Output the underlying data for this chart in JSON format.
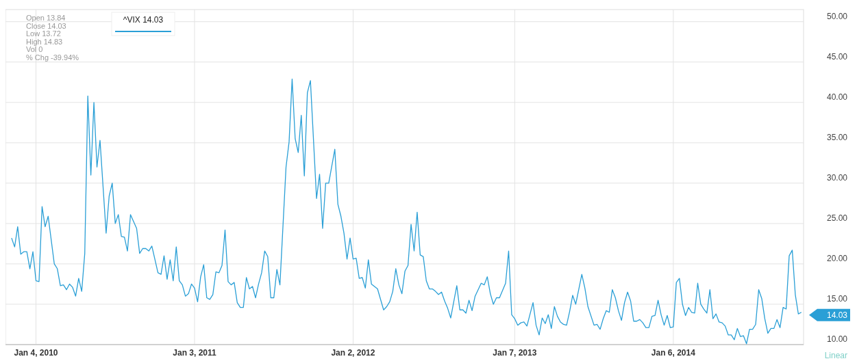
{
  "chart_data": {
    "type": "line",
    "xlim": [
      "2009-10-26",
      "2014-11-01"
    ],
    "ylim": [
      10,
      51.5
    ],
    "xticks": [
      {
        "value": "2010-01-04",
        "label": "Jan 4, 2010"
      },
      {
        "value": "2011-01-03",
        "label": "Jan 3, 2011"
      },
      {
        "value": "2012-01-02",
        "label": "Jan 2, 2012"
      },
      {
        "value": "2013-01-07",
        "label": "Jan 7, 2013"
      },
      {
        "value": "2014-01-06",
        "label": "Jan 6, 2014"
      }
    ],
    "yticks": [
      {
        "value": 10,
        "label": "10.00"
      },
      {
        "value": 15,
        "label": "15.00"
      },
      {
        "value": 20,
        "label": "20.00"
      },
      {
        "value": 25,
        "label": "25.00"
      },
      {
        "value": 30,
        "label": "30.00"
      },
      {
        "value": 35,
        "label": "35.00"
      },
      {
        "value": 40,
        "label": "40.00"
      },
      {
        "value": 45,
        "label": "45.00"
      },
      {
        "value": 50,
        "label": "50.00"
      }
    ],
    "grid": true,
    "legend": "top left",
    "marker": "none",
    "line_style": "solid",
    "series": [
      {
        "name": "^VIX 14.03",
        "color": "#2a9fd6",
        "x": [
          "2009-11-09",
          "2009-11-16",
          "2009-11-23",
          "2009-11-30",
          "2009-12-07",
          "2009-12-14",
          "2009-12-21",
          "2009-12-28",
          "2010-01-04",
          "2010-01-11",
          "2010-01-18",
          "2010-01-25",
          "2010-02-01",
          "2010-02-15",
          "2010-02-22",
          "2010-03-01",
          "2010-03-08",
          "2010-03-15",
          "2010-03-22",
          "2010-03-29",
          "2010-04-05",
          "2010-04-12",
          "2010-04-19",
          "2010-04-26",
          "2010-05-03",
          "2010-05-10",
          "2010-05-17",
          "2010-05-24",
          "2010-05-31",
          "2010-06-14",
          "2010-06-21",
          "2010-06-28",
          "2010-07-05",
          "2010-07-12",
          "2010-07-19",
          "2010-07-26",
          "2010-08-02",
          "2010-08-09",
          "2010-08-23",
          "2010-08-30",
          "2010-09-06",
          "2010-09-13",
          "2010-09-20",
          "2010-09-27",
          "2010-10-11",
          "2010-10-18",
          "2010-10-25",
          "2010-11-01",
          "2010-11-08",
          "2010-11-15",
          "2010-11-22",
          "2010-11-29",
          "2010-12-06",
          "2010-12-13",
          "2010-12-20",
          "2010-12-27",
          "2011-01-03",
          "2011-01-10",
          "2011-01-17",
          "2011-01-24",
          "2011-01-31",
          "2011-02-07",
          "2011-02-14",
          "2011-02-21",
          "2011-02-28",
          "2011-03-07",
          "2011-03-14",
          "2011-03-21",
          "2011-03-28",
          "2011-04-04",
          "2011-04-11",
          "2011-04-18",
          "2011-04-25",
          "2011-05-02",
          "2011-05-09",
          "2011-05-16",
          "2011-05-23",
          "2011-05-30",
          "2011-06-06",
          "2011-06-13",
          "2011-06-20",
          "2011-06-27",
          "2011-07-04",
          "2011-07-11",
          "2011-07-18",
          "2011-08-01",
          "2011-08-08",
          "2011-08-15",
          "2011-08-22",
          "2011-08-29",
          "2011-09-05",
          "2011-09-12",
          "2011-09-19",
          "2011-09-26",
          "2011-10-10",
          "2011-10-17",
          "2011-10-24",
          "2011-10-31",
          "2011-11-07",
          "2011-11-21",
          "2011-11-28",
          "2011-12-05",
          "2011-12-12",
          "2011-12-19",
          "2011-12-26",
          "2012-01-02",
          "2012-01-09",
          "2012-01-16",
          "2012-01-23",
          "2012-01-30",
          "2012-02-06",
          "2012-02-13",
          "2012-02-20",
          "2012-02-27",
          "2012-03-12",
          "2012-03-19",
          "2012-03-26",
          "2012-04-02",
          "2012-04-09",
          "2012-04-16",
          "2012-04-23",
          "2012-04-30",
          "2012-05-07",
          "2012-05-14",
          "2012-05-21",
          "2012-05-28",
          "2012-06-04",
          "2012-06-11",
          "2012-06-18",
          "2012-06-25",
          "2012-07-02",
          "2012-07-09",
          "2012-07-16",
          "2012-07-23",
          "2012-07-30",
          "2012-08-06",
          "2012-08-13",
          "2012-08-20",
          "2012-08-27",
          "2012-09-03",
          "2012-09-10",
          "2012-09-17",
          "2012-09-24",
          "2012-10-01",
          "2012-10-08",
          "2012-10-15",
          "2012-10-22",
          "2012-10-29",
          "2012-11-05",
          "2012-11-12",
          "2012-11-19",
          "2012-11-26",
          "2012-12-03",
          "2012-12-17",
          "2012-12-24",
          "2012-12-31",
          "2013-01-07",
          "2013-01-14",
          "2013-01-21",
          "2013-01-28",
          "2013-02-04",
          "2013-02-18",
          "2013-02-25",
          "2013-03-04",
          "2013-03-11",
          "2013-03-18",
          "2013-03-25",
          "2013-04-01",
          "2013-04-08",
          "2013-04-15",
          "2013-04-22",
          "2013-04-29",
          "2013-05-06",
          "2013-05-13",
          "2013-05-20",
          "2013-05-27",
          "2013-06-10",
          "2013-06-17",
          "2013-06-24",
          "2013-07-08",
          "2013-07-15",
          "2013-07-22",
          "2013-07-29",
          "2013-08-05",
          "2013-08-12",
          "2013-08-19",
          "2013-08-26",
          "2013-09-02",
          "2013-09-09",
          "2013-09-16",
          "2013-09-23",
          "2013-09-30",
          "2013-10-07",
          "2013-10-14",
          "2013-10-21",
          "2013-10-28",
          "2013-11-04",
          "2013-11-11",
          "2013-11-18",
          "2013-11-25",
          "2013-12-02",
          "2013-12-09",
          "2013-12-16",
          "2013-12-23",
          "2013-12-30",
          "2014-01-06",
          "2014-01-13",
          "2014-01-20",
          "2014-01-27",
          "2014-02-03",
          "2014-02-10",
          "2014-02-17",
          "2014-02-24",
          "2014-03-03",
          "2014-03-10",
          "2014-03-17",
          "2014-03-24",
          "2014-03-31",
          "2014-04-07",
          "2014-04-14",
          "2014-04-21",
          "2014-04-28",
          "2014-05-05",
          "2014-05-12",
          "2014-05-19",
          "2014-05-26",
          "2014-06-02",
          "2014-06-09",
          "2014-06-16",
          "2014-06-23",
          "2014-06-30",
          "2014-07-07",
          "2014-07-14",
          "2014-07-21",
          "2014-07-28",
          "2014-08-04",
          "2014-08-11",
          "2014-08-18",
          "2014-08-25",
          "2014-09-01",
          "2014-09-08",
          "2014-09-15",
          "2014-09-22",
          "2014-09-29",
          "2014-10-06",
          "2014-10-13",
          "2014-10-20",
          "2014-10-27"
        ],
        "values": [
          23.2,
          22.1,
          24.6,
          21.2,
          21.5,
          21.5,
          19.4,
          21.5,
          17.9,
          17.8,
          27.1,
          24.6,
          25.9,
          20.0,
          19.4,
          17.3,
          17.4,
          16.8,
          17.5,
          17.1,
          16.0,
          18.2,
          16.6,
          21.3,
          40.8,
          31.0,
          40.0,
          32.0,
          35.3,
          23.8,
          28.4,
          30.0,
          25.0,
          26.1,
          23.4,
          23.3,
          21.6,
          26.1,
          24.4,
          21.3,
          21.9,
          21.9,
          21.6,
          22.2,
          18.9,
          18.7,
          21.0,
          18.1,
          20.5,
          17.9,
          22.1,
          17.9,
          17.4,
          16.0,
          16.3,
          17.5,
          17.0,
          15.3,
          18.4,
          19.9,
          15.8,
          15.6,
          16.2,
          19.0,
          18.9,
          19.8,
          24.2,
          17.8,
          17.4,
          17.7,
          15.2,
          14.6,
          14.6,
          18.3,
          16.9,
          17.2,
          15.8,
          17.5,
          18.9,
          21.6,
          20.9,
          15.8,
          15.8,
          19.3,
          17.4,
          32.0,
          35.1,
          42.9,
          35.5,
          33.8,
          38.4,
          30.9,
          41.2,
          42.7,
          28.1,
          31.1,
          24.4,
          30.0,
          30.0,
          34.2,
          27.4,
          25.9,
          23.8,
          20.6,
          23.2,
          20.6,
          20.7,
          18.2,
          18.3,
          17.0,
          20.5,
          17.5,
          17.2,
          16.9,
          14.3,
          14.7,
          15.3,
          16.6,
          19.4,
          17.4,
          16.3,
          19.1,
          19.8,
          24.9,
          21.6,
          26.4,
          21.1,
          20.9,
          17.9,
          16.9,
          16.9,
          16.6,
          16.2,
          16.5,
          15.4,
          14.5,
          13.3,
          15.3,
          17.3,
          14.3,
          14.3,
          13.9,
          15.5,
          14.2,
          16.0,
          16.8,
          17.6,
          17.4,
          18.4,
          16.3,
          15.0,
          15.8,
          15.8,
          17.6,
          21.6,
          13.7,
          13.2,
          12.4,
          12.7,
          12.8,
          12.3,
          15.2,
          12.4,
          11.2,
          13.3,
          12.6,
          13.7,
          12.0,
          14.7,
          13.5,
          12.8,
          12.5,
          12.4,
          14.1,
          16.1,
          15.0,
          18.7,
          17.0,
          14.7,
          12.4,
          12.5,
          11.9,
          13.2,
          14.2,
          14.0,
          16.8,
          15.8,
          14.2,
          13.0,
          15.2,
          16.5,
          15.4,
          12.9,
          12.9,
          13.1,
          12.7,
          12.1,
          12.1,
          13.5,
          13.6,
          15.5,
          13.7,
          12.4,
          13.6,
          12.1,
          12.2,
          17.7,
          18.2,
          15.0,
          13.6,
          14.6,
          14.0,
          13.9,
          17.6,
          15.0,
          14.4,
          13.9,
          16.8,
          13.2,
          13.8,
          12.8,
          12.7,
          12.3,
          11.2,
          11.2,
          10.6,
          12.0,
          11.0,
          11.1,
          10.1,
          11.9,
          11.9,
          12.5,
          16.8,
          15.7,
          13.2,
          11.4,
          12.0,
          12.0,
          13.1,
          12.1,
          14.6,
          14.4,
          21.0,
          21.7,
          16.2,
          13.8,
          14.0
        ]
      }
    ],
    "annotations": [
      "Open 13.84",
      "Close 14.03",
      "Low 13.72",
      "High 14.83",
      "Vol 0",
      "% Chg -39.94%",
      "Linear",
      "14.03"
    ]
  }
}
